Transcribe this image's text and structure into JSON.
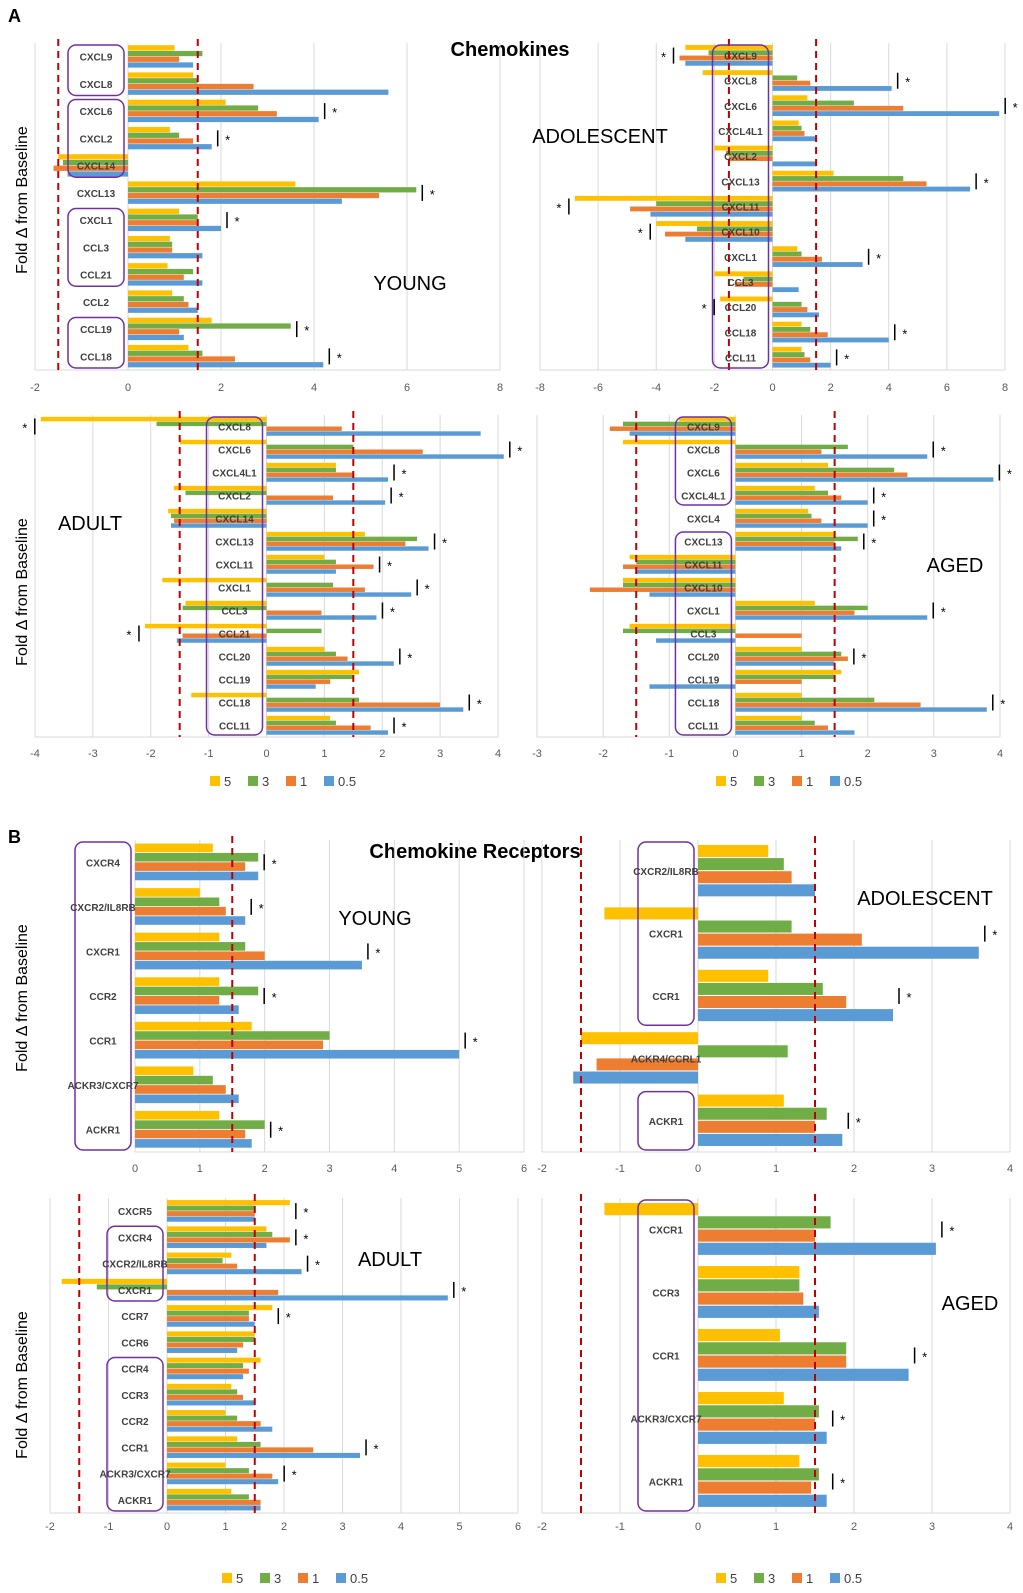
{
  "figure": {
    "panel_a_letter": "A",
    "panel_b_letter": "B",
    "panel_a_title": "Chemokines",
    "panel_b_title": "Chemokine Receptors",
    "y_axis_label": "Fold Δ from Baseline",
    "legend": [
      "5",
      "3",
      "1",
      "0.5"
    ],
    "colors": {
      "5": "#FFC000",
      "3": "#70AD47",
      "1": "#ED7D31",
      "0.5": "#5B9BD5",
      "threshold": "#C00000",
      "box": "#7030A0",
      "grid": "#D9D9D9"
    }
  },
  "chart_data": [
    {
      "id": "a_young",
      "type": "bar",
      "orientation": "horizontal",
      "label": "YOUNG",
      "xlim": [
        -2,
        8
      ],
      "ticks": [
        -2,
        0,
        2,
        4,
        6,
        8
      ],
      "thresholds": [
        -1.5,
        1.5
      ],
      "series_order": [
        "5",
        "3",
        "1",
        "0.5"
      ],
      "categories": [
        "CXCL9",
        "CXCL8",
        "CXCL6",
        "CXCL2",
        "CXCL14",
        "CXCL13",
        "CXCL1",
        "CCL3",
        "CCL21",
        "CCL2",
        "CCL19",
        "CCL18"
      ],
      "values": [
        [
          1.0,
          1.6,
          1.1,
          1.4
        ],
        [
          1.4,
          1.5,
          2.7,
          5.6
        ],
        [
          2.1,
          2.8,
          3.2,
          4.1
        ],
        [
          0.9,
          1.1,
          1.4,
          1.8
        ],
        [
          -1.5,
          -1.4,
          -1.6,
          -1.3
        ],
        [
          3.6,
          6.2,
          5.4,
          4.6
        ],
        [
          1.1,
          1.5,
          1.5,
          2.0
        ],
        [
          0.9,
          0.95,
          0.95,
          1.6
        ],
        [
          0.85,
          1.4,
          1.2,
          1.6
        ],
        [
          0.95,
          1.2,
          1.3,
          1.5
        ],
        [
          1.8,
          3.5,
          1.1,
          1.2
        ],
        [
          1.3,
          1.6,
          2.3,
          4.2
        ]
      ],
      "stars": [
        2,
        3,
        5,
        6,
        10,
        11
      ],
      "boxes": [
        [
          0,
          1
        ],
        [
          2,
          4
        ],
        [
          6,
          8
        ],
        [
          10,
          11
        ]
      ]
    },
    {
      "id": "a_adolescent",
      "type": "bar",
      "orientation": "horizontal",
      "label": "ADOLESCENT",
      "xlim": [
        -8,
        8
      ],
      "ticks": [
        -8,
        -6,
        -4,
        -2,
        0,
        2,
        4,
        6,
        8
      ],
      "thresholds": [
        -1.5,
        1.5
      ],
      "series_order": [
        "5",
        "3",
        "1",
        "0.5"
      ],
      "categories": [
        "CXCL9",
        "CXCL8",
        "CXCL6",
        "CXCL4L1",
        "CXCL2",
        "CXCL13",
        "CXCL11",
        "CXCL10",
        "CXCL1",
        "CCL3",
        "CCL20",
        "CCL18",
        "CCL11"
      ],
      "values": [
        [
          -3.0,
          -2.2,
          -3.2,
          -3.0
        ],
        [
          -2.4,
          0.85,
          1.3,
          4.1
        ],
        [
          1.2,
          2.8,
          4.5,
          7.8
        ],
        [
          0.9,
          1.0,
          1.1,
          1.5
        ],
        [
          -2.0,
          -1.6,
          -1.5,
          1.5
        ],
        [
          2.1,
          4.5,
          5.3,
          6.8
        ],
        [
          -6.8,
          -4.0,
          -4.9,
          -4.2
        ],
        [
          -4.0,
          -2.6,
          -3.7,
          -3.0
        ],
        [
          0.85,
          1.0,
          1.7,
          3.1
        ],
        [
          -2.0,
          -1.0,
          -1.3,
          0.9
        ],
        [
          -1.8,
          1.0,
          1.2,
          1.6
        ],
        [
          1.0,
          1.3,
          1.9,
          4.0
        ],
        [
          1.0,
          1.1,
          1.3,
          2.0
        ]
      ],
      "stars": [
        0,
        1,
        2,
        5,
        6,
        7,
        8,
        10,
        11,
        12
      ],
      "boxes": [
        [
          0,
          12
        ]
      ]
    },
    {
      "id": "a_adult",
      "type": "bar",
      "orientation": "horizontal",
      "label": "ADULT",
      "xlim": [
        -4,
        4
      ],
      "ticks": [
        -4,
        -3,
        -2,
        -1,
        0,
        1,
        2,
        3,
        4
      ],
      "thresholds": [
        -1.5,
        1.5
      ],
      "series_order": [
        "5",
        "3",
        "1",
        "0.5"
      ],
      "categories": [
        "CXCL8",
        "CXCL6",
        "CXCL4L1",
        "CXCL2",
        "CXCL14",
        "CXCL13",
        "CXCL11",
        "CXCL1",
        "CCL3",
        "CCL21",
        "CCL20",
        "CCL19",
        "CCL18",
        "CCL11"
      ],
      "values": [
        [
          -3.9,
          -1.9,
          1.3,
          3.7
        ],
        [
          -1.5,
          1.5,
          2.7,
          4.1
        ],
        [
          1.2,
          1.2,
          1.5,
          2.1
        ],
        [
          -1.6,
          -1.4,
          1.15,
          2.05
        ],
        [
          -1.7,
          -1.65,
          -1.6,
          -1.65
        ],
        [
          1.7,
          2.6,
          2.4,
          2.8
        ],
        [
          1.0,
          1.2,
          1.85,
          1.2
        ],
        [
          -1.8,
          1.15,
          1.7,
          2.5
        ],
        [
          -1.4,
          -1.45,
          0.95,
          1.9
        ],
        [
          -2.1,
          0.95,
          -1.45,
          -1.55
        ],
        [
          1.0,
          1.2,
          1.4,
          2.2
        ],
        [
          1.6,
          1.5,
          1.1,
          0.85
        ],
        [
          -1.3,
          1.6,
          3.0,
          3.4
        ],
        [
          1.1,
          1.2,
          1.8,
          2.1
        ]
      ],
      "stars": [
        0,
        1,
        2,
        3,
        5,
        6,
        7,
        8,
        9,
        10,
        12,
        13
      ],
      "boxes": [
        [
          0,
          13
        ]
      ]
    },
    {
      "id": "a_aged",
      "type": "bar",
      "orientation": "horizontal",
      "label": "AGED",
      "xlim": [
        -3,
        4
      ],
      "ticks": [
        -3,
        -2,
        -1,
        0,
        1,
        2,
        3,
        4
      ],
      "thresholds": [
        -1.5,
        1.5
      ],
      "series_order": [
        "5",
        "3",
        "1",
        "0.5"
      ],
      "categories": [
        "CXCL9",
        "CXCL8",
        "CXCL6",
        "CXCL4L1",
        "CXCL4",
        "CXCL13",
        "CXCL11",
        "CXCL10",
        "CXCL1",
        "CCL3",
        "CCL20",
        "CCL19",
        "CCL18",
        "CCL11"
      ],
      "values": [
        [
          -0.85,
          -1.7,
          -1.9,
          -1.6
        ],
        [
          -1.7,
          1.7,
          1.3,
          2.9
        ],
        [
          1.4,
          2.4,
          2.6,
          3.9
        ],
        [
          1.2,
          1.4,
          1.6,
          2.0
        ],
        [
          1.1,
          1.15,
          1.3,
          2.0
        ],
        [
          1.5,
          1.85,
          1.5,
          1.6
        ],
        [
          -1.6,
          -1.5,
          -1.7,
          -1.5
        ],
        [
          -1.7,
          -1.7,
          -2.2,
          -1.3
        ],
        [
          1.2,
          2.0,
          1.8,
          2.9
        ],
        [
          -1.6,
          -1.7,
          1.0,
          -1.2
        ],
        [
          1.0,
          1.6,
          1.7,
          1.5
        ],
        [
          1.6,
          1.5,
          1.0,
          -1.3
        ],
        [
          1.0,
          2.1,
          2.8,
          3.8
        ],
        [
          1.0,
          1.2,
          1.4,
          1.8
        ]
      ],
      "stars": [
        1,
        2,
        3,
        4,
        5,
        8,
        10,
        12
      ],
      "boxes": [
        [
          0,
          3
        ],
        [
          5,
          13
        ]
      ]
    },
    {
      "id": "b_young",
      "type": "bar",
      "orientation": "horizontal",
      "label": "YOUNG",
      "xlim": [
        0,
        6
      ],
      "ticks": [
        0,
        1,
        2,
        3,
        4,
        5,
        6
      ],
      "thresholds": [
        1.5
      ],
      "series_order": [
        "5",
        "3",
        "1",
        "0.5"
      ],
      "categories": [
        "CXCR4",
        "CXCR2/IL8RB",
        "CXCR1",
        "CCR2",
        "CCR1",
        "ACKR3/CXCR7",
        "ACKR1"
      ],
      "values": [
        [
          1.2,
          1.9,
          1.7,
          1.9
        ],
        [
          1.0,
          1.3,
          1.4,
          1.7
        ],
        [
          1.3,
          1.7,
          2.0,
          3.5
        ],
        [
          1.3,
          1.9,
          1.3,
          1.6
        ],
        [
          1.8,
          3.0,
          2.9,
          5.0
        ],
        [
          0.9,
          1.2,
          1.4,
          1.6
        ],
        [
          1.3,
          2.0,
          1.7,
          1.8
        ]
      ],
      "stars": [
        0,
        1,
        2,
        3,
        4,
        6
      ],
      "boxes": [
        [
          0,
          6
        ]
      ]
    },
    {
      "id": "b_adolescent",
      "type": "bar",
      "orientation": "horizontal",
      "label": "ADOLESCENT",
      "xlim": [
        -2,
        4
      ],
      "ticks": [
        -2,
        -1,
        0,
        1,
        2,
        3,
        4
      ],
      "thresholds": [
        -1.5,
        1.5
      ],
      "series_order": [
        "5",
        "3",
        "1",
        "0.5"
      ],
      "categories": [
        "CXCR2/IL8RB",
        "CXCR1",
        "CCR1",
        "ACKR4/CCRL1",
        "ACKR1"
      ],
      "values": [
        [
          0.9,
          1.1,
          1.2,
          1.5
        ],
        [
          -1.2,
          1.2,
          2.1,
          3.6
        ],
        [
          0.9,
          1.6,
          1.9,
          2.5
        ],
        [
          -1.5,
          1.15,
          -1.3,
          -1.6
        ],
        [
          1.1,
          1.65,
          1.5,
          1.85
        ]
      ],
      "stars": [
        1,
        2,
        4
      ],
      "boxes": [
        [
          0,
          2
        ],
        [
          4,
          4
        ]
      ]
    },
    {
      "id": "b_adult",
      "type": "bar",
      "orientation": "horizontal",
      "label": "ADULT",
      "xlim": [
        -2,
        6
      ],
      "ticks": [
        -2,
        -1,
        0,
        1,
        2,
        3,
        4,
        5,
        6
      ],
      "thresholds": [
        -1.5,
        1.5
      ],
      "series_order": [
        "5",
        "3",
        "1",
        "0.5"
      ],
      "categories": [
        "CXCR5",
        "CXCR4",
        "CXCR2/IL8RB",
        "CXCR1",
        "CCR7",
        "CCR6",
        "CCR4",
        "CCR3",
        "CCR2",
        "CCR1",
        "ACKR3/CXCR7",
        "ACKR1"
      ],
      "values": [
        [
          2.1,
          1.5,
          1.5,
          1.5
        ],
        [
          1.7,
          1.8,
          2.1,
          1.7
        ],
        [
          1.1,
          0.95,
          1.2,
          2.3
        ],
        [
          -1.8,
          -1.2,
          1.9,
          4.8
        ],
        [
          1.8,
          1.4,
          1.4,
          1.5
        ],
        [
          1.5,
          1.5,
          1.3,
          1.2
        ],
        [
          1.6,
          1.3,
          1.4,
          1.3
        ],
        [
          1.1,
          1.2,
          1.3,
          1.5
        ],
        [
          1.0,
          1.2,
          1.6,
          1.8
        ],
        [
          1.2,
          1.6,
          2.5,
          3.3
        ],
        [
          1.0,
          1.4,
          1.8,
          1.9
        ],
        [
          1.1,
          1.4,
          1.6,
          1.6
        ]
      ],
      "stars": [
        0,
        1,
        2,
        3,
        4,
        9,
        10
      ],
      "boxes": [
        [
          1,
          3
        ],
        [
          6,
          11
        ]
      ]
    },
    {
      "id": "b_aged",
      "type": "bar",
      "orientation": "horizontal",
      "label": "AGED",
      "xlim": [
        -2,
        4
      ],
      "ticks": [
        -2,
        -1,
        0,
        1,
        2,
        3,
        4
      ],
      "thresholds": [
        -1.5,
        1.5
      ],
      "series_order": [
        "5",
        "3",
        "1",
        "0.5"
      ],
      "categories": [
        "CXCR1",
        "CCR3",
        "CCR1",
        "ACKR3/CXCR7",
        "ACKR1"
      ],
      "values": [
        [
          -1.2,
          1.7,
          1.5,
          3.05
        ],
        [
          1.3,
          1.3,
          1.35,
          1.55
        ],
        [
          1.05,
          1.9,
          1.9,
          2.7
        ],
        [
          1.1,
          1.55,
          1.5,
          1.65
        ],
        [
          1.3,
          1.55,
          1.45,
          1.65
        ]
      ],
      "stars": [
        0,
        2,
        3,
        4
      ],
      "boxes": [
        [
          0,
          4
        ]
      ]
    }
  ]
}
